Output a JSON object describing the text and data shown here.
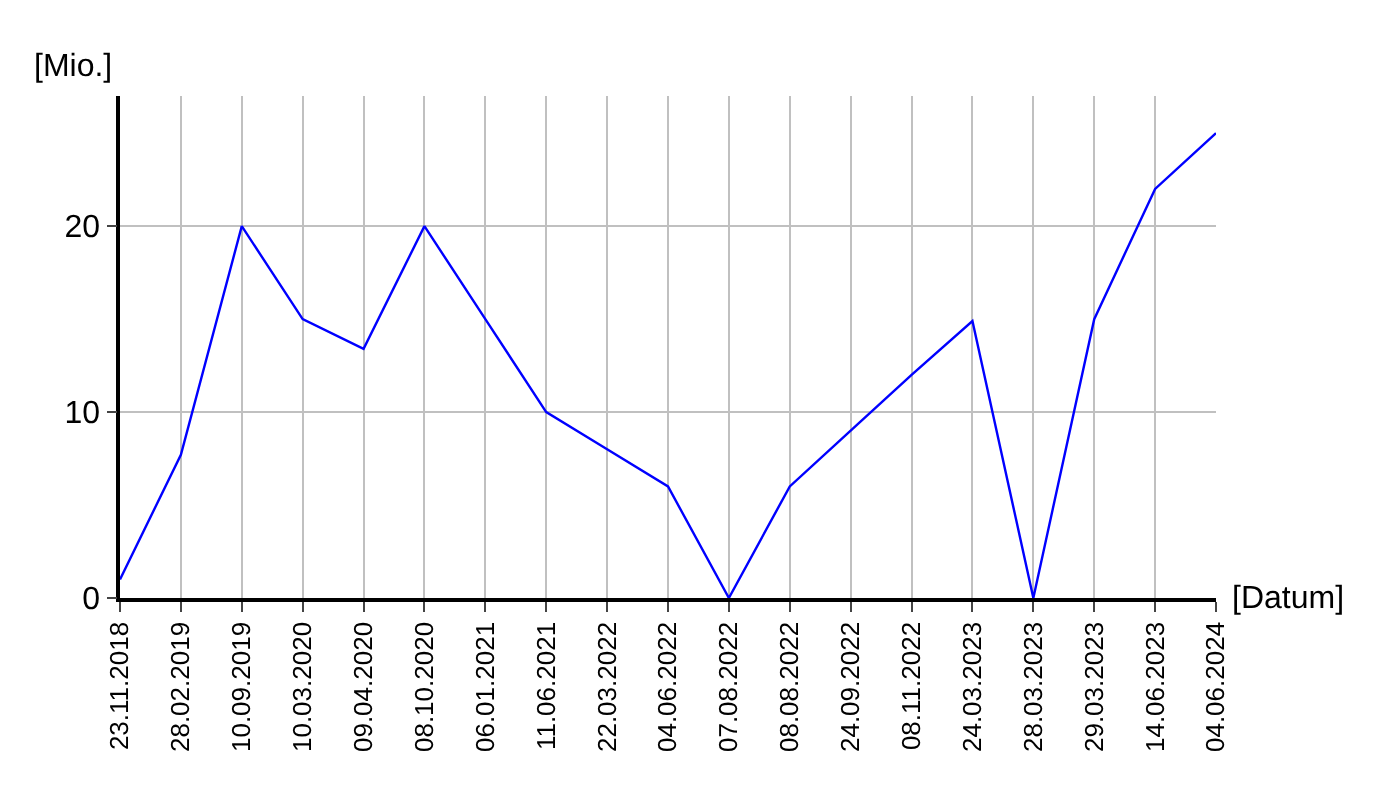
{
  "chart_data": {
    "type": "line",
    "ylabel": "[Mio.]",
    "xlabel": "[Datum]",
    "categories": [
      "23.11.2018",
      "28.02.2019",
      "10.09.2019",
      "10.03.2020",
      "09.04.2020",
      "08.10.2020",
      "06.01.2021",
      "11.06.2021",
      "22.03.2022",
      "04.06.2022",
      "07.08.2022",
      "08.08.2022",
      "24.09.2022",
      "08.11.2022",
      "24.03.2023",
      "28.03.2023",
      "29.03.2023",
      "14.06.2023",
      "04.06.2024"
    ],
    "series": [
      {
        "color": "#0000ff",
        "values": [
          1,
          7.7,
          20,
          15,
          13.4,
          20,
          15,
          10,
          8,
          6,
          0,
          6,
          9,
          12,
          14.9,
          0,
          15,
          22,
          25
        ]
      }
    ],
    "ylim": [
      0,
      27
    ],
    "yticks": [
      0,
      10,
      20
    ],
    "grid": true,
    "marker": "none",
    "line_style": "solid"
  }
}
